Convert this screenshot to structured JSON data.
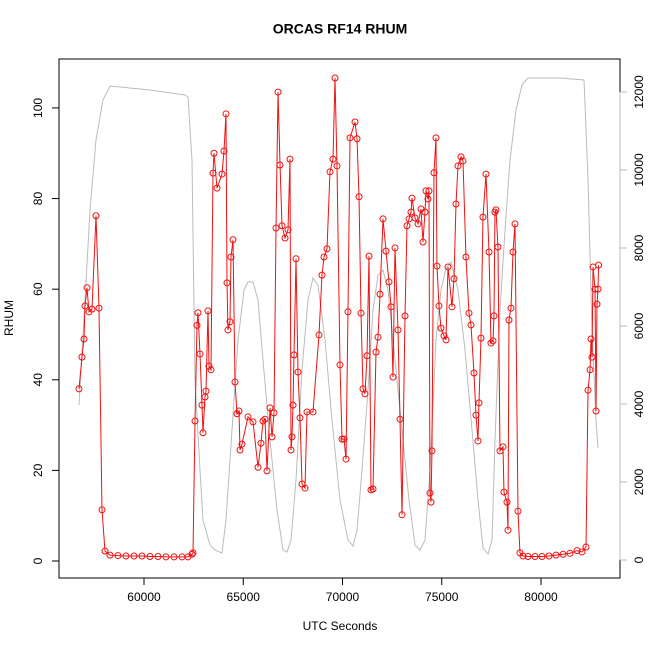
{
  "chart_data": {
    "type": "line",
    "title": "ORCAS RF14 RHUM",
    "x_label": "UTC Seconds",
    "y_label": "RHUM",
    "xlim": [
      55718,
      83980
    ],
    "ylim": [
      -3.75,
      110.8
    ],
    "y2lim": [
      -461,
      12846
    ],
    "xticks": [
      60000,
      65000,
      70000,
      75000,
      80000
    ],
    "yticks": [
      0,
      20,
      40,
      60,
      80,
      100
    ],
    "y2ticks": [
      0,
      2000,
      4000,
      6000,
      8000,
      10000,
      12000
    ],
    "y2_color": "#bbbbbb",
    "series": [
      {
        "color": "#bbbbbb",
        "axis": "y2",
        "markers": false,
        "x": [
          56725,
          57028,
          57279,
          57582,
          57934,
          58287,
          58791,
          60302,
          62066,
          62217,
          62418,
          62569,
          62821,
          62972,
          63325,
          63577,
          63930,
          64131,
          64433,
          64736,
          65038,
          65240,
          65491,
          65743,
          65995,
          66348,
          66700,
          67003,
          67204,
          67406,
          67658,
          67960,
          68262,
          68514,
          68766,
          69119,
          69471,
          69874,
          70278,
          70529,
          70731,
          70983,
          71285,
          71537,
          71789,
          72041,
          72293,
          72645,
          72998,
          73351,
          73653,
          73905,
          74157,
          74409,
          74711,
          74963,
          75215,
          75467,
          75819,
          76172,
          76525,
          76827,
          77079,
          77331,
          77532,
          77683,
          77935,
          78187,
          78439,
          78741,
          79044,
          79346,
          80958,
          82167,
          82369,
          82570,
          82772,
          82873
        ],
        "values": [
          3974,
          6667,
          8974,
          10770,
          11795,
          12154,
          12128,
          12051,
          11923,
          11872,
          10256,
          4615,
          2308,
          1026,
          385,
          256,
          180,
          1026,
          3333,
          5641,
          6923,
          7128,
          7128,
          6667,
          5128,
          3077,
          1282,
          256,
          205,
          513,
          2051,
          4872,
          6667,
          7231,
          7051,
          5641,
          3590,
          1538,
          513,
          359,
          769,
          2308,
          4359,
          6410,
          7308,
          7436,
          6923,
          5128,
          3333,
          1538,
          385,
          256,
          513,
          2308,
          5641,
          6923,
          7487,
          7641,
          6923,
          5385,
          3333,
          1538,
          308,
          154,
          513,
          3077,
          6410,
          8462,
          10256,
          11538,
          12179,
          12359,
          12359,
          12308,
          9744,
          5897,
          3590,
          2872
        ]
      },
      {
        "color": "#ee1111",
        "markers": true,
        "x": [
          56725,
          56876,
          56977,
          57027,
          57128,
          57229,
          57380,
          57582,
          57733,
          57884,
          58035,
          58287,
          58690,
          59093,
          59496,
          59899,
          60302,
          60705,
          61108,
          61511,
          61914,
          62217,
          62418,
          62469,
          62570,
          62670,
          62720,
          62821,
          62922,
          62972,
          63073,
          63123,
          63224,
          63275,
          63375,
          63476,
          63526,
          63677,
          63929,
          64030,
          64130,
          64181,
          64231,
          64332,
          64382,
          64483,
          64584,
          64685,
          64786,
          64836,
          64937,
          65239,
          65491,
          65743,
          65894,
          65995,
          66096,
          66197,
          66348,
          66449,
          66550,
          66651,
          66752,
          66853,
          66953,
          67104,
          67255,
          67355,
          67406,
          67456,
          67507,
          67557,
          67658,
          67758,
          67859,
          67960,
          68111,
          68212,
          68514,
          68816,
          68967,
          69068,
          69219,
          69370,
          69521,
          69622,
          69723,
          69874,
          69975,
          70076,
          70177,
          70277,
          70378,
          70630,
          70731,
          70832,
          70932,
          71033,
          71134,
          71235,
          71335,
          71436,
          71537,
          71688,
          71789,
          71890,
          72041,
          72192,
          72343,
          72444,
          72544,
          72645,
          72796,
          72897,
          72998,
          73149,
          73249,
          73350,
          73451,
          73501,
          73652,
          73803,
          73954,
          74055,
          74155,
          74206,
          74306,
          74357,
          74407,
          74458,
          74508,
          74609,
          74710,
          74760,
          74861,
          74962,
          75113,
          75214,
          75315,
          75516,
          75617,
          75718,
          75818,
          75970,
          76070,
          76221,
          76372,
          76473,
          76624,
          76725,
          76826,
          76876,
          76977,
          77077,
          77229,
          77380,
          77480,
          77581,
          77632,
          77682,
          77732,
          77833,
          77934,
          78085,
          78135,
          78286,
          78337,
          78387,
          78488,
          78589,
          78690,
          78841,
          78941,
          79093,
          79346,
          79698,
          80051,
          80404,
          80757,
          81110,
          81462,
          81815,
          82066,
          82268,
          82369,
          82470,
          82520,
          82570,
          82621,
          82722,
          82772,
          82822,
          82873,
          82900
        ],
        "values": [
          38,
          45,
          49,
          56.3,
          60.3,
          55,
          55.6,
          76.2,
          55.8,
          11.3,
          2.2,
          1.3,
          1.2,
          1.1,
          1.1,
          1.1,
          1,
          1,
          0.9,
          0.9,
          0.9,
          0.9,
          1.5,
          1.8,
          30.9,
          52,
          54.8,
          45.7,
          34.4,
          28.3,
          36.2,
          37.5,
          55.2,
          43,
          42.2,
          85.6,
          90,
          82.3,
          85.4,
          90.5,
          98.7,
          61.4,
          51,
          52.8,
          67.1,
          70.9,
          39.5,
          32.5,
          33.1,
          24.5,
          25.8,
          31.8,
          30.7,
          20.7,
          26,
          30.9,
          31.3,
          19.9,
          33.8,
          27.4,
          32.7,
          73.5,
          103.5,
          87.4,
          74,
          71.3,
          73.1,
          88.7,
          24.5,
          27.4,
          34.4,
          45.5,
          66.7,
          41.7,
          31.6,
          17,
          16.1,
          32.9,
          32.9,
          49.9,
          63.1,
          67.1,
          68.9,
          85.9,
          88.7,
          106.6,
          87.2,
          43.3,
          26.9,
          26.9,
          22.5,
          55,
          93.4,
          96.9,
          93.2,
          80.4,
          54.7,
          38,
          36.9,
          45.3,
          67.3,
          15.7,
          15.9,
          46.1,
          49.4,
          58.9,
          75.5,
          68.4,
          61.6,
          56.1,
          40.6,
          69.1,
          51,
          31.3,
          10.2,
          54.1,
          74,
          75.5,
          77,
          80.1,
          75.7,
          74.4,
          77.7,
          70.4,
          77,
          81.7,
          79.9,
          81.7,
          15,
          13,
          24.3,
          85.7,
          93.4,
          65.1,
          56.3,
          51.4,
          49.7,
          48.8,
          64.9,
          56.1,
          62.3,
          78.8,
          87.2,
          89.2,
          88.3,
          67.1,
          54.7,
          52.1,
          41.5,
          32.2,
          26.5,
          34.9,
          49.2,
          75.9,
          85.4,
          68.2,
          48.1,
          48.6,
          54.1,
          77,
          77.5,
          69.3,
          24.3,
          25.2,
          15.2,
          13,
          6.8,
          53.2,
          55.8,
          68.2,
          74.4,
          11,
          1.8,
          1.1,
          1,
          1,
          1,
          1.1,
          1.3,
          1.5,
          1.7,
          2.3,
          2,
          3.1,
          37.7,
          42.2,
          49,
          45,
          64.9,
          60,
          33.1,
          56.7,
          60,
          65.3
        ]
      }
    ]
  }
}
